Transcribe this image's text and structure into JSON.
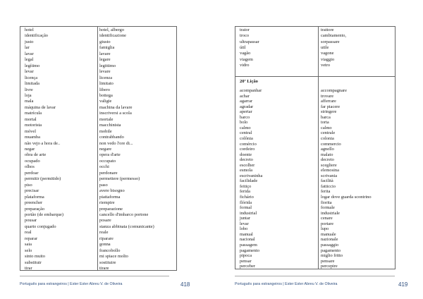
{
  "left_page": {
    "rows": [
      [
        "hotel",
        "hotel, albergo"
      ],
      [
        "identificação",
        "identificazione"
      ],
      [
        "justo",
        "giusto"
      ],
      [
        "lar",
        "famiglia"
      ],
      [
        "lavar",
        "lavare"
      ],
      [
        "legal",
        "legare"
      ],
      [
        "legítimo",
        "legittimo"
      ],
      [
        "levar",
        "levare"
      ],
      [
        "licença",
        "licenza"
      ],
      [
        "limitada",
        "limitato"
      ],
      [
        "livre",
        "libero"
      ],
      [
        "loja",
        "bottega"
      ],
      [
        "mala",
        "valigie"
      ],
      [
        "máquina de lavar",
        "machina da lavare"
      ],
      [
        "matrícula",
        "inscriversi a scola"
      ],
      [
        "mortal",
        "mortale"
      ],
      [
        "motorista",
        "macchinista"
      ],
      [
        "móvel",
        "mobile"
      ],
      [
        "muamba",
        "contrabbando"
      ],
      [
        "não vejo a hora de..",
        "non vedo l'ore di..."
      ],
      [
        "negar",
        "negare"
      ],
      [
        "obra de arte",
        "opera d'arte"
      ],
      [
        "ocupado",
        "occupato"
      ],
      [
        "olhos",
        "occhi"
      ],
      [
        "perdoar",
        "perdonare"
      ],
      [
        "permitir (permitido)",
        "permettere (permesso)"
      ],
      [
        "piso",
        "paso"
      ],
      [
        "precisar",
        "avere bisogno"
      ],
      [
        "plataforma",
        "piattaforma"
      ],
      [
        "preencher",
        "riempire"
      ],
      [
        "preparação",
        "preparazione"
      ],
      [
        "portão (de embarque)",
        "cancello d'imbarco portone"
      ],
      [
        "pousar",
        "posare"
      ],
      [
        "quarto conjugado",
        "stanza abbinata (comunicante)"
      ],
      [
        "real",
        "reale"
      ],
      [
        "reparar",
        "riparare"
      ],
      [
        "saia",
        "gonna"
      ],
      [
        "selo",
        "francobollo"
      ],
      [
        "sinto muito",
        "mi spiace molto"
      ],
      [
        "substituir",
        "sostituire"
      ],
      [
        "tirar",
        "tirare"
      ]
    ],
    "footer": "Português para estrangeiros | Ester Ester Abreu V. de Oliveira",
    "page_number": "418"
  },
  "right_page": {
    "rows_top": [
      [
        "trator",
        "trattore"
      ],
      [
        "troco",
        "cambiamento,"
      ],
      [
        "ultrapassar",
        "sorpassare"
      ],
      [
        "útil",
        "utile"
      ],
      [
        "vagão",
        "vagone"
      ],
      [
        "viagem",
        "viaggio"
      ],
      [
        "vidro",
        "vetro"
      ]
    ],
    "lesson_title": "20ª Lição",
    "rows_lesson": [
      [
        "acompanhar",
        "accompagnare"
      ],
      [
        "achar",
        "trovare"
      ],
      [
        "agarrar",
        "afferrare"
      ],
      [
        "agradar",
        "far piacere"
      ],
      [
        "apertar",
        "stringere"
      ],
      [
        "barco",
        "barca"
      ],
      [
        "bolo",
        "torta"
      ],
      [
        "calmo",
        "calmo"
      ],
      [
        "central",
        "centrale"
      ],
      [
        "colônia",
        "colonia"
      ],
      [
        "comércio",
        "commercio"
      ],
      [
        "cordeiro",
        "agnello"
      ],
      [
        "doente",
        "malato"
      ],
      [
        "decreto",
        "decreto"
      ],
      [
        "escolher",
        "scegliere"
      ],
      [
        "esmola",
        "elemosina"
      ],
      [
        "escrivaninha",
        "scrivania"
      ],
      [
        "facilidade",
        "facilità"
      ],
      [
        "feitiço",
        "fatticcio"
      ],
      [
        "ferida",
        "ferita"
      ],
      [
        "fichário",
        "logar dove guarda scontrino"
      ],
      [
        "flórida",
        "fiorita"
      ],
      [
        "formal",
        "formale"
      ],
      [
        "industrial",
        "industriale"
      ],
      [
        "juntar",
        "cenare"
      ],
      [
        "levar",
        "portare"
      ],
      [
        "lobo",
        "lupo"
      ],
      [
        "manual",
        "manuale"
      ],
      [
        "nacional",
        "nazionale"
      ],
      [
        "passagem",
        "passaggio"
      ],
      [
        "pagamento",
        "pagamento"
      ],
      [
        "pipoca",
        "miglio fritto"
      ],
      [
        "pensar",
        "pensare"
      ],
      [
        "perceber",
        "percepire"
      ]
    ],
    "footer": "Português para estrangeiros | Ester Ester Abreu V. de Oliveira",
    "page_number": "419"
  }
}
